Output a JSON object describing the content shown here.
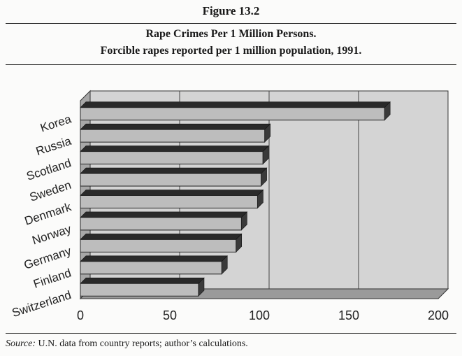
{
  "figure_label": "Figure 13.2",
  "title_line1": "Rape Crimes Per 1 Million Persons.",
  "title_line2": "Forcible rapes reported per 1 million population, 1991.",
  "source_label": "Source:",
  "source_text": "U.N. data from country reports; author’s calculations.",
  "colors": {
    "bar_face": "#bdbdbd",
    "bar_top": "#2a2a2a",
    "bar_side": "#3a3a3a",
    "wall": "#d4d4d4",
    "floor": "#9a9a9a"
  },
  "chart_data": {
    "type": "bar",
    "orientation": "horizontal",
    "title": "Rape Crimes Per 1 Million Persons.",
    "subtitle": "Forcible rapes reported per 1 million population, 1991.",
    "categories": [
      "Korea",
      "Russia",
      "Scotland",
      "Sweden",
      "Denmark",
      "Norway",
      "Germany",
      "Finland",
      "Switzerland"
    ],
    "values": [
      170,
      103,
      102,
      101,
      99,
      90,
      87,
      79,
      66
    ],
    "xlim": [
      0,
      200
    ],
    "xticks": [
      0,
      50,
      100,
      150,
      200
    ],
    "xlabel": "",
    "ylabel": "",
    "grid": true,
    "style": "3d"
  }
}
